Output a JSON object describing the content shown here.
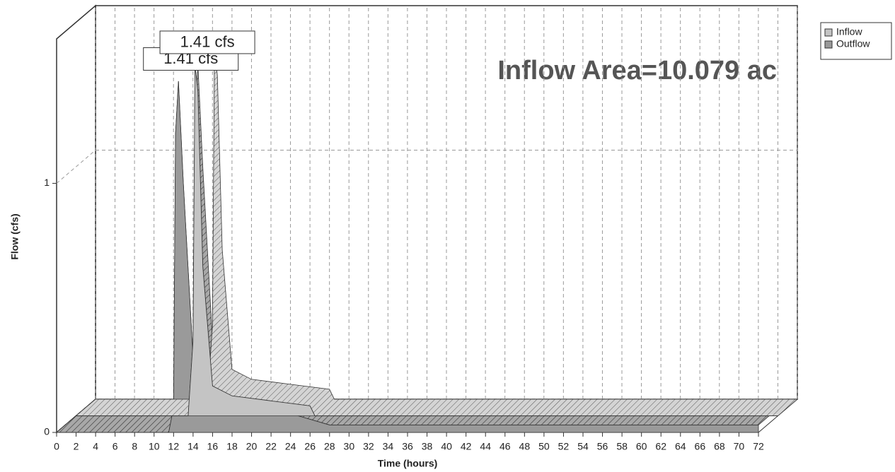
{
  "chart_data": {
    "type": "area3d",
    "annotation": "Inflow Area=10.079 ac",
    "xlabel": "Time  (hours)",
    "ylabel": "Flow  (cfs)",
    "x": [
      0,
      11.5,
      12,
      12.2,
      12.5,
      13,
      14,
      16,
      20,
      24,
      24.5,
      28,
      72
    ],
    "series": [
      {
        "name": "Inflow",
        "color": "#c4c4c4",
        "values": [
          0,
          0,
          0.3,
          1.41,
          1.3,
          0.6,
          0.12,
          0.08,
          0.06,
          0.04,
          0,
          0,
          0
        ],
        "value_labels": [
          null,
          null,
          null,
          "1.41 cfs",
          null,
          null,
          null,
          null,
          null,
          null,
          null,
          null,
          null
        ]
      },
      {
        "name": "Outflow",
        "color": "#9a9a9a",
        "values": [
          0,
          0,
          0.1,
          1.2,
          1.41,
          1.0,
          0.3,
          0.09,
          0.08,
          0.08,
          0.07,
          0.03,
          0.03
        ],
        "value_labels": [
          null,
          null,
          null,
          null,
          "1.41 cfs",
          null,
          null,
          null,
          null,
          null,
          null,
          null,
          null
        ]
      }
    ],
    "xlim": [
      0,
      72
    ],
    "xticks": [
      0,
      2,
      4,
      6,
      8,
      10,
      12,
      14,
      16,
      18,
      20,
      22,
      24,
      26,
      28,
      30,
      32,
      34,
      36,
      38,
      40,
      42,
      44,
      46,
      48,
      50,
      52,
      54,
      56,
      58,
      60,
      62,
      64,
      66,
      68,
      70,
      72
    ],
    "ylim": [
      0,
      1.58
    ],
    "yticks": [
      0,
      1
    ],
    "grid": true,
    "legend": "top-right"
  }
}
